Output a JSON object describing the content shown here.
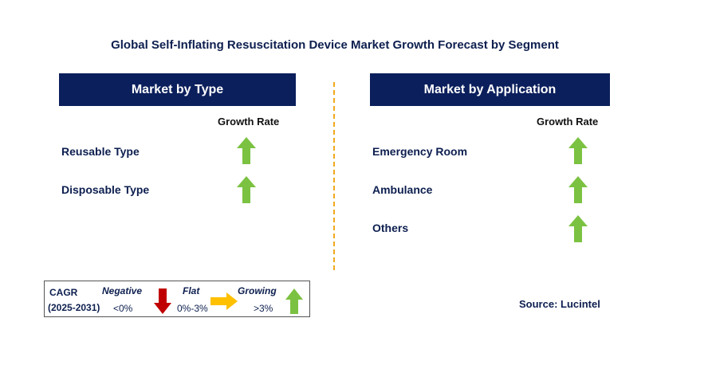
{
  "title": "Global Self-Inflating Resuscitation Device Market Growth Forecast by Segment",
  "left_panel": {
    "header": "Market by Type",
    "growth_label": "Growth Rate",
    "rows": [
      {
        "label": "Reusable Type",
        "trend": "growing"
      },
      {
        "label": "Disposable Type",
        "trend": "growing"
      }
    ]
  },
  "right_panel": {
    "header": "Market by Application",
    "growth_label": "Growth Rate",
    "rows": [
      {
        "label": "Emergency Room",
        "trend": "growing"
      },
      {
        "label": "Ambulance",
        "trend": "growing"
      },
      {
        "label": "Others",
        "trend": "growing"
      }
    ]
  },
  "legend": {
    "cagr_label": "CAGR",
    "period": "(2025-2031)",
    "negative_label": "Negative",
    "negative_range": "<0%",
    "flat_label": "Flat",
    "flat_range": "0%-3%",
    "growing_label": "Growing",
    "growing_range": ">3%"
  },
  "source": "Source: Lucintel",
  "colors": {
    "header_bg": "#0b1f5c",
    "growing_arrow": "#7cc242",
    "negative_arrow": "#c00000",
    "flat_arrow": "#ffc000",
    "divider": "#f2a81c"
  },
  "icons": {
    "growing": "green-up-arrow-icon",
    "negative": "red-down-arrow-icon",
    "flat": "yellow-right-arrow-icon"
  }
}
